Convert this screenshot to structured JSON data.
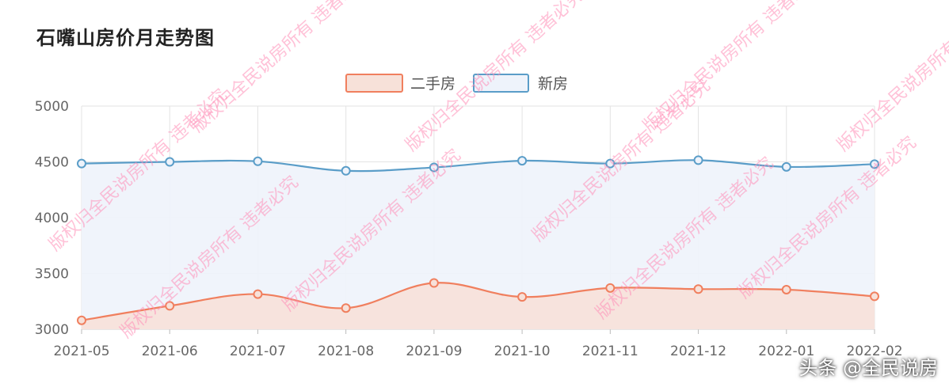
{
  "chart_data": {
    "type": "line",
    "title": "石嘴山房价月走势图",
    "categories": [
      "2021-05",
      "2021-06",
      "2021-07",
      "2021-08",
      "2021-09",
      "2021-10",
      "2021-11",
      "2021-12",
      "2022-01",
      "2022-02"
    ],
    "series": [
      {
        "name": "二手房",
        "values": [
          3080,
          3210,
          3315,
          3190,
          3415,
          3290,
          3370,
          3360,
          3355,
          3295
        ],
        "color": "#f07f5e",
        "fill": "#f7e1d9"
      },
      {
        "name": "新房",
        "values": [
          4485,
          4500,
          4505,
          4420,
          4450,
          4510,
          4485,
          4515,
          4455,
          4480
        ],
        "color": "#5a9dc8",
        "fill": "#eef3fb"
      }
    ],
    "ylim": [
      3000,
      5000
    ],
    "yticks": [
      "3000",
      "3500",
      "4000",
      "4500",
      "5000"
    ],
    "grid": true,
    "legend_position": "top-center",
    "area": true,
    "smooth": true
  },
  "watermark": {
    "text": "版权归全民说房所有 违者必究",
    "brand": "头条 @全民说房",
    "color": "#ff8fb8"
  }
}
